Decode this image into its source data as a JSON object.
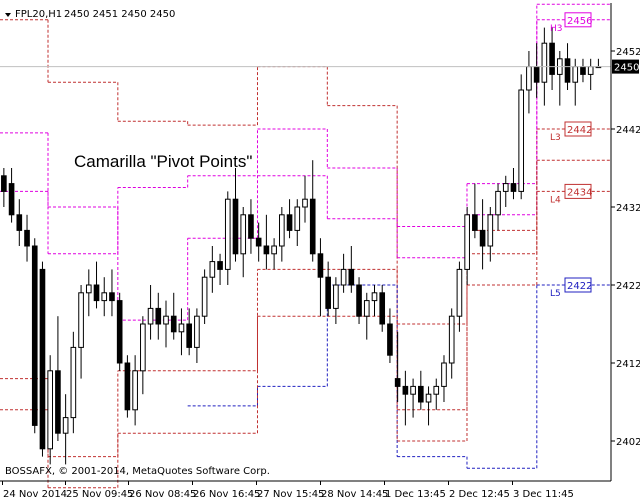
{
  "header": {
    "symbol_label": "FPL20,H1",
    "ohlc_label": "2450 2451 2450 2450"
  },
  "copyright": "BOSSAFX, © 2001-2014, MetaQuotes Software Corp.",
  "chart_data": {
    "type": "candlestick",
    "annotation": "Camarilla \"Pivot Points\"",
    "ylim": [
      2398,
      2459
    ],
    "y_ticks": [
      2402,
      2412,
      2422,
      2432,
      2442,
      2452
    ],
    "current_price": 2450,
    "x_tick_labels": [
      "24 Nov 2014",
      "25 Nov 09:45",
      "26 Nov 08:45",
      "26 Nov 16:45",
      "27 Nov 15:45",
      "28 Nov 14:45",
      "1 Dec 13:45",
      "2 Dec 12:45",
      "3 Dec 11:45"
    ],
    "level_tags": [
      {
        "name": "H3",
        "value": 2456,
        "label": "2456",
        "color": "#e000e0"
      },
      {
        "name": "L3",
        "value": 2442,
        "label": "2442",
        "color": "#c03030"
      },
      {
        "name": "L4",
        "value": 2434,
        "label": "2434",
        "color": "#c03030"
      },
      {
        "name": "L5",
        "value": 2422,
        "label": "2422",
        "color": "#2020c0"
      }
    ],
    "pivot_lines": [
      {
        "name": "H3",
        "color": "#e000e0",
        "segments": [
          [
            0,
            11,
            2441.5
          ],
          [
            11,
            27,
            2432
          ],
          [
            27,
            43,
            2417.5
          ],
          [
            43,
            59,
            2428
          ],
          [
            59,
            75,
            2442
          ],
          [
            75,
            91,
            2437
          ],
          [
            91,
            107,
            2429.5
          ],
          [
            107,
            123,
            2435
          ],
          [
            123,
            140,
            2458
          ]
        ]
      },
      {
        "name": "L3",
        "color": "#c03030",
        "segments": [
          [
            0,
            11,
            2410
          ],
          [
            11,
            27,
            2400
          ],
          [
            27,
            43,
            2411
          ],
          [
            43,
            59,
            2411
          ],
          [
            59,
            75,
            2424
          ],
          [
            75,
            91,
            2424
          ],
          [
            91,
            107,
            2406
          ],
          [
            107,
            123,
            2426
          ],
          [
            123,
            140,
            2442
          ]
        ]
      },
      {
        "name": "L4",
        "color": "#c03030",
        "segments": [
          [
            0,
            11,
            2456
          ],
          [
            11,
            27,
            2448
          ],
          [
            27,
            43,
            2443
          ],
          [
            43,
            59,
            2442.5
          ],
          [
            59,
            75,
            2450
          ],
          [
            75,
            91,
            2445
          ],
          [
            91,
            107,
            2417
          ],
          [
            107,
            123,
            2429
          ],
          [
            123,
            140,
            2434
          ]
        ]
      },
      {
        "name": "L5",
        "color": "#2020c0",
        "segments": [
          [
            43,
            59,
            2406.5
          ],
          [
            59,
            75,
            2409
          ],
          [
            75,
            91,
            2422
          ],
          [
            91,
            107,
            2400
          ],
          [
            107,
            123,
            2398.5
          ],
          [
            123,
            140,
            2422
          ]
        ]
      },
      {
        "name": "H4",
        "color": "#e000e0",
        "segments": [
          [
            0,
            11,
            2434
          ],
          [
            11,
            27,
            2426
          ],
          [
            27,
            43,
            2434.5
          ],
          [
            43,
            59,
            2436
          ],
          [
            59,
            75,
            2436
          ],
          [
            75,
            91,
            2430.5
          ],
          [
            91,
            107,
            2425.5
          ],
          [
            107,
            123,
            2431
          ],
          [
            123,
            140,
            2456
          ]
        ]
      },
      {
        "name": "L5b",
        "color": "#c03030",
        "segments": [
          [
            0,
            11,
            2406
          ],
          [
            11,
            27,
            2396
          ],
          [
            27,
            43,
            2403
          ],
          [
            43,
            59,
            2403
          ],
          [
            59,
            75,
            2418
          ],
          [
            75,
            91,
            2418
          ],
          [
            91,
            107,
            2402
          ],
          [
            107,
            123,
            2422
          ],
          [
            123,
            140,
            2438
          ]
        ]
      }
    ],
    "candles": [
      [
        2436,
        2437,
        2432,
        2434
      ],
      [
        2435,
        2437,
        2430,
        2431
      ],
      [
        2431,
        2433,
        2427,
        2429
      ],
      [
        2429,
        2431,
        2425,
        2427
      ],
      [
        2427,
        2428,
        2403,
        2404
      ],
      [
        2424,
        2425,
        2400,
        2401
      ],
      [
        2401,
        2413,
        2399,
        2411
      ],
      [
        2411,
        2418,
        2402,
        2403
      ],
      [
        2403,
        2408,
        2399,
        2405
      ],
      [
        2405,
        2416,
        2403,
        2414
      ],
      [
        2414,
        2422,
        2410,
        2421
      ],
      [
        2421,
        2424,
        2418,
        2422
      ],
      [
        2422,
        2425,
        2419,
        2420
      ],
      [
        2420,
        2423,
        2418,
        2421
      ],
      [
        2421,
        2424,
        2418,
        2420
      ],
      [
        2420,
        2421,
        2411,
        2412
      ],
      [
        2412,
        2413,
        2405,
        2406
      ],
      [
        2406,
        2413,
        2404,
        2411
      ],
      [
        2411,
        2418,
        2408,
        2417
      ],
      [
        2417,
        2422,
        2415,
        2419
      ],
      [
        2419,
        2421,
        2415,
        2417
      ],
      [
        2417,
        2420,
        2414,
        2418
      ],
      [
        2418,
        2421,
        2415,
        2416
      ],
      [
        2416,
        2419,
        2413,
        2417
      ],
      [
        2417,
        2419,
        2413,
        2414
      ],
      [
        2414,
        2419,
        2412,
        2418
      ],
      [
        2418,
        2424,
        2417,
        2423
      ],
      [
        2423,
        2427,
        2421,
        2425
      ],
      [
        2425,
        2426,
        2422,
        2424
      ],
      [
        2424,
        2434,
        2422,
        2433
      ],
      [
        2433,
        2437,
        2425,
        2426
      ],
      [
        2426,
        2432,
        2423,
        2431
      ],
      [
        2431,
        2433,
        2426,
        2428
      ],
      [
        2428,
        2430,
        2425,
        2427
      ],
      [
        2427,
        2431,
        2424,
        2426
      ],
      [
        2426,
        2428,
        2424,
        2427
      ],
      [
        2427,
        2432,
        2425,
        2431
      ],
      [
        2431,
        2433,
        2428,
        2429
      ],
      [
        2429,
        2433,
        2427,
        2432
      ],
      [
        2432,
        2436,
        2430,
        2433
      ],
      [
        2433,
        2438,
        2425,
        2426
      ],
      [
        2426,
        2428,
        2418,
        2423
      ],
      [
        2423,
        2425,
        2418,
        2419
      ],
      [
        2419,
        2423,
        2417,
        2422
      ],
      [
        2422,
        2426,
        2421,
        2424
      ],
      [
        2424,
        2427,
        2421,
        2422
      ],
      [
        2422,
        2423,
        2417,
        2418
      ],
      [
        2418,
        2421,
        2415,
        2420
      ],
      [
        2420,
        2422,
        2418,
        2421
      ],
      [
        2421,
        2422,
        2416,
        2417
      ],
      [
        2417,
        2419,
        2412,
        2413
      ],
      [
        2410,
        2416,
        2407,
        2409
      ],
      [
        2409,
        2411,
        2404,
        2408
      ],
      [
        2408,
        2410,
        2405,
        2409
      ],
      [
        2409,
        2411,
        2406,
        2407
      ],
      [
        2407,
        2409,
        2404,
        2408
      ],
      [
        2408,
        2410,
        2406,
        2409
      ],
      [
        2409,
        2413,
        2407,
        2412
      ],
      [
        2412,
        2419,
        2410,
        2418
      ],
      [
        2418,
        2425,
        2416,
        2424
      ],
      [
        2424,
        2432,
        2422,
        2431
      ],
      [
        2431,
        2435,
        2428,
        2429
      ],
      [
        2429,
        2433,
        2424,
        2427
      ],
      [
        2427,
        2432,
        2425,
        2431
      ],
      [
        2431,
        2435,
        2429,
        2434
      ],
      [
        2434,
        2436,
        2432,
        2435
      ],
      [
        2435,
        2437,
        2433,
        2434
      ],
      [
        2434,
        2449,
        2433,
        2447
      ],
      [
        2447,
        2452,
        2444,
        2450
      ],
      [
        2450,
        2453,
        2446,
        2448
      ],
      [
        2448,
        2455,
        2445,
        2453
      ],
      [
        2453,
        2455,
        2447,
        2449
      ],
      [
        2449,
        2452,
        2445,
        2451
      ],
      [
        2451,
        2453,
        2447,
        2448
      ],
      [
        2448,
        2451,
        2445,
        2450
      ],
      [
        2450,
        2451,
        2448,
        2449
      ],
      [
        2449,
        2451,
        2447,
        2450
      ],
      [
        2450,
        2451,
        2450,
        2450
      ]
    ]
  }
}
